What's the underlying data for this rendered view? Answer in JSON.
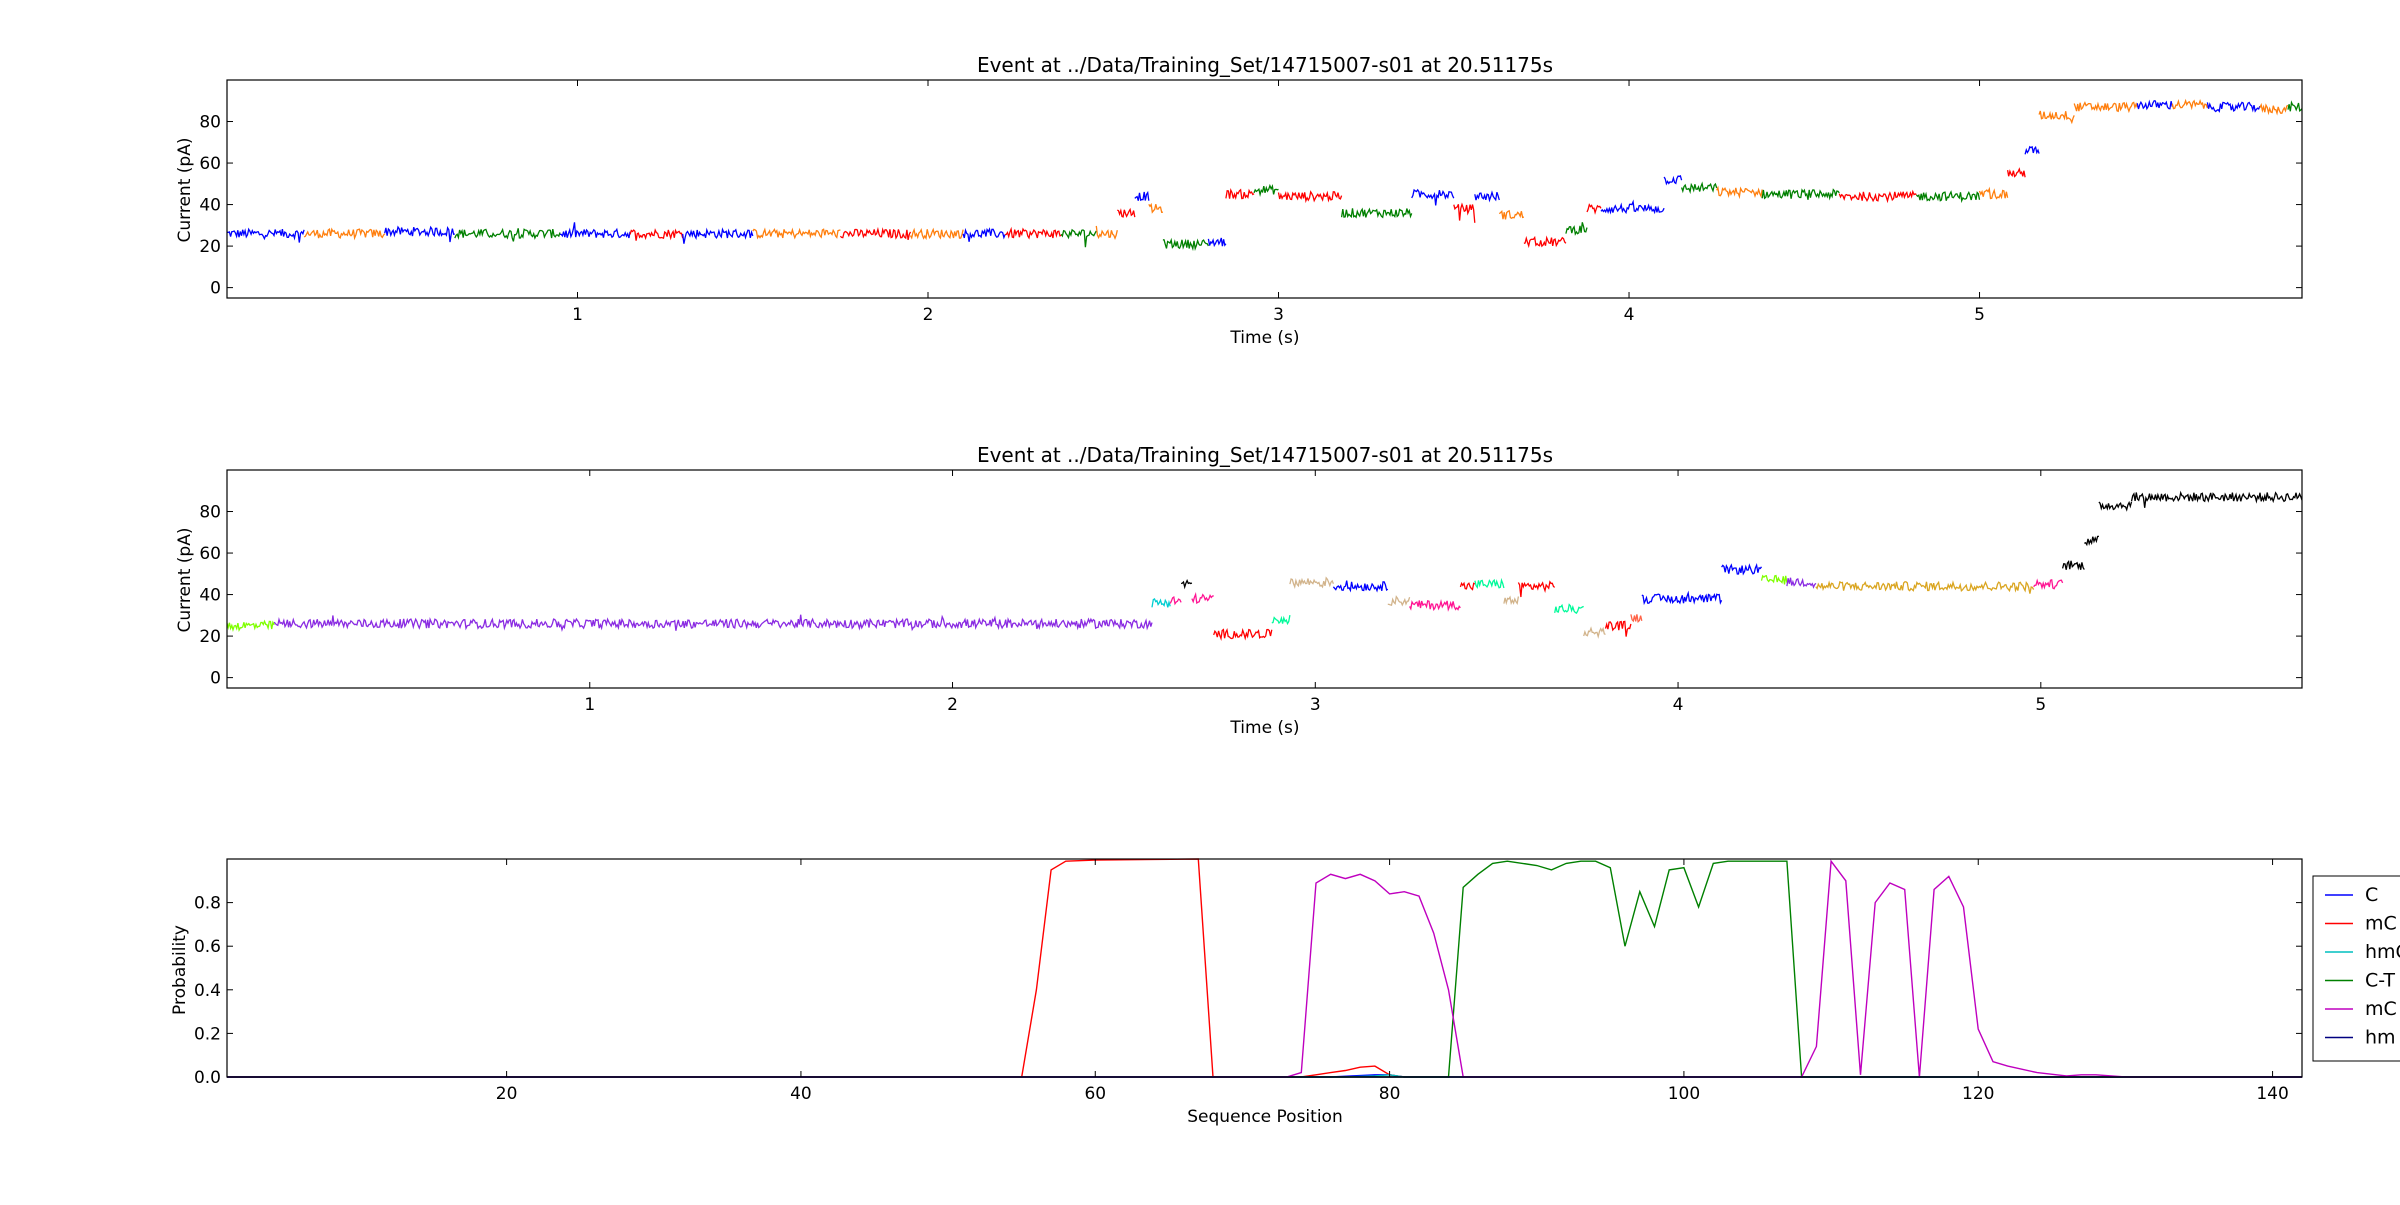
{
  "figure": {
    "background": "#ffffff"
  },
  "chart_data": [
    {
      "type": "line",
      "title": "Event at ../Data/Training_Set/14715007-s01 at 20.51175s",
      "xlabel": "Time (s)",
      "ylabel": "Current (pA)",
      "xlim": [
        0.0,
        5.92
      ],
      "ylim": [
        -5,
        100
      ],
      "xticks": [
        1,
        2,
        3,
        4,
        5
      ],
      "yticks": [
        0,
        20,
        40,
        60,
        80
      ],
      "grid": false,
      "noise_pA": 1.1,
      "segments": [
        {
          "t0": 0.0,
          "t1": 0.22,
          "level": 26,
          "color": "#0000ff"
        },
        {
          "t0": 0.22,
          "t1": 0.45,
          "level": 26,
          "color": "#ff7f0e"
        },
        {
          "t0": 0.45,
          "t1": 0.65,
          "level": 27,
          "color": "#0000ff"
        },
        {
          "t0": 0.65,
          "t1": 0.95,
          "level": 26,
          "color": "#008000"
        },
        {
          "t0": 0.95,
          "t1": 1.15,
          "level": 26,
          "color": "#0000ff"
        },
        {
          "t0": 1.15,
          "t1": 1.3,
          "level": 26,
          "color": "#ff0000"
        },
        {
          "t0": 1.3,
          "t1": 1.5,
          "level": 26,
          "color": "#0000ff"
        },
        {
          "t0": 1.5,
          "t1": 1.75,
          "level": 26,
          "color": "#ff7f0e"
        },
        {
          "t0": 1.75,
          "t1": 1.95,
          "level": 26,
          "color": "#ff0000"
        },
        {
          "t0": 1.95,
          "t1": 2.1,
          "level": 26,
          "color": "#ff7f0e"
        },
        {
          "t0": 2.1,
          "t1": 2.22,
          "level": 26,
          "color": "#0000ff"
        },
        {
          "t0": 2.22,
          "t1": 2.38,
          "level": 26,
          "color": "#ff0000"
        },
        {
          "t0": 2.38,
          "t1": 2.48,
          "level": 26,
          "color": "#008000"
        },
        {
          "t0": 2.48,
          "t1": 2.54,
          "level": 26,
          "color": "#ff7f0e"
        },
        {
          "t0": 2.54,
          "t1": 2.59,
          "level": 36,
          "color": "#ff0000"
        },
        {
          "t0": 2.59,
          "t1": 2.63,
          "level": 44,
          "color": "#0000ff"
        },
        {
          "t0": 2.63,
          "t1": 2.67,
          "level": 38,
          "color": "#ff7f0e"
        },
        {
          "t0": 2.67,
          "t1": 2.8,
          "level": 21,
          "color": "#008000"
        },
        {
          "t0": 2.8,
          "t1": 2.85,
          "level": 22,
          "color": "#0000ff"
        },
        {
          "t0": 2.85,
          "t1": 2.93,
          "level": 45,
          "color": "#ff0000"
        },
        {
          "t0": 2.93,
          "t1": 3.0,
          "level": 47,
          "color": "#008000"
        },
        {
          "t0": 3.0,
          "t1": 3.18,
          "level": 44,
          "color": "#ff0000"
        },
        {
          "t0": 3.18,
          "t1": 3.38,
          "level": 36,
          "color": "#008000"
        },
        {
          "t0": 3.38,
          "t1": 3.5,
          "level": 45,
          "color": "#0000ff"
        },
        {
          "t0": 3.5,
          "t1": 3.56,
          "level": 38,
          "color": "#ff0000"
        },
        {
          "t0": 3.56,
          "t1": 3.63,
          "level": 44,
          "color": "#0000ff"
        },
        {
          "t0": 3.63,
          "t1": 3.7,
          "level": 35,
          "color": "#ff7f0e"
        },
        {
          "t0": 3.7,
          "t1": 3.82,
          "level": 22,
          "color": "#ff0000"
        },
        {
          "t0": 3.82,
          "t1": 3.88,
          "level": 28,
          "color": "#008000"
        },
        {
          "t0": 3.88,
          "t1": 3.92,
          "level": 38,
          "color": "#ff0000"
        },
        {
          "t0": 3.92,
          "t1": 4.1,
          "level": 38,
          "color": "#0000ff"
        },
        {
          "t0": 4.1,
          "t1": 4.15,
          "level": 52,
          "color": "#0000ff"
        },
        {
          "t0": 4.15,
          "t1": 4.25,
          "level": 48,
          "color": "#008000"
        },
        {
          "t0": 4.25,
          "t1": 4.38,
          "level": 46,
          "color": "#ff7f0e"
        },
        {
          "t0": 4.38,
          "t1": 4.6,
          "level": 45,
          "color": "#008000"
        },
        {
          "t0": 4.6,
          "t1": 4.82,
          "level": 44,
          "color": "#ff0000"
        },
        {
          "t0": 4.82,
          "t1": 5.0,
          "level": 44,
          "color": "#008000"
        },
        {
          "t0": 5.0,
          "t1": 5.08,
          "level": 45,
          "color": "#ff7f0e"
        },
        {
          "t0": 5.08,
          "t1": 5.13,
          "level": 55,
          "color": "#ff0000"
        },
        {
          "t0": 5.13,
          "t1": 5.17,
          "level": 66,
          "color": "#0000ff"
        },
        {
          "t0": 5.17,
          "t1": 5.27,
          "level": 83,
          "color": "#ff7f0e"
        },
        {
          "t0": 5.27,
          "t1": 5.45,
          "level": 87,
          "color": "#ff7f0e"
        },
        {
          "t0": 5.45,
          "t1": 5.55,
          "level": 88,
          "color": "#0000ff"
        },
        {
          "t0": 5.55,
          "t1": 5.65,
          "level": 88,
          "color": "#ff7f0e"
        },
        {
          "t0": 5.65,
          "t1": 5.8,
          "level": 87,
          "color": "#0000ff"
        },
        {
          "t0": 5.8,
          "t1": 5.88,
          "level": 86,
          "color": "#ff7f0e"
        },
        {
          "t0": 5.88,
          "t1": 5.92,
          "level": 87,
          "color": "#008000"
        }
      ]
    },
    {
      "type": "line",
      "title": "Event at ../Data/Training_Set/14715007-s01 at 20.51175s",
      "xlabel": "Time (s)",
      "ylabel": "Current (pA)",
      "xlim": [
        0.0,
        5.72
      ],
      "ylim": [
        -5,
        100
      ],
      "xticks": [
        1,
        2,
        3,
        4,
        5
      ],
      "yticks": [
        0,
        20,
        40,
        60,
        80
      ],
      "grid": false,
      "noise_pA": 1.1,
      "segments": [
        {
          "t0": 0.0,
          "t1": 0.13,
          "level": 25,
          "color": "#7fff00"
        },
        {
          "t0": 0.13,
          "t1": 2.55,
          "level": 26,
          "color": "#8a2be2"
        },
        {
          "t0": 2.55,
          "t1": 2.6,
          "level": 36,
          "color": "#00ced1"
        },
        {
          "t0": 2.6,
          "t1": 2.63,
          "level": 37,
          "color": "#ff1493"
        },
        {
          "t0": 2.63,
          "t1": 2.66,
          "level": 45,
          "color": "#000000"
        },
        {
          "t0": 2.66,
          "t1": 2.72,
          "level": 38,
          "color": "#ff1493"
        },
        {
          "t0": 2.72,
          "t1": 2.88,
          "level": 21,
          "color": "#ff0000"
        },
        {
          "t0": 2.88,
          "t1": 2.93,
          "level": 28,
          "color": "#00fa9a"
        },
        {
          "t0": 2.93,
          "t1": 3.05,
          "level": 46,
          "color": "#d2b48c"
        },
        {
          "t0": 3.05,
          "t1": 3.2,
          "level": 44,
          "color": "#0000ff"
        },
        {
          "t0": 3.2,
          "t1": 3.26,
          "level": 37,
          "color": "#d2b48c"
        },
        {
          "t0": 3.26,
          "t1": 3.4,
          "level": 35,
          "color": "#ff1493"
        },
        {
          "t0": 3.4,
          "t1": 3.44,
          "level": 44,
          "color": "#ff0000"
        },
        {
          "t0": 3.44,
          "t1": 3.52,
          "level": 45,
          "color": "#00fa9a"
        },
        {
          "t0": 3.52,
          "t1": 3.56,
          "level": 37,
          "color": "#d2b48c"
        },
        {
          "t0": 3.56,
          "t1": 3.66,
          "level": 44,
          "color": "#ff0000"
        },
        {
          "t0": 3.66,
          "t1": 3.74,
          "level": 33,
          "color": "#00fa9a"
        },
        {
          "t0": 3.74,
          "t1": 3.8,
          "level": 22,
          "color": "#d2b48c"
        },
        {
          "t0": 3.8,
          "t1": 3.87,
          "level": 25,
          "color": "#ff0000"
        },
        {
          "t0": 3.87,
          "t1": 3.9,
          "level": 29,
          "color": "#ff6347"
        },
        {
          "t0": 3.9,
          "t1": 4.12,
          "level": 38,
          "color": "#0000ff"
        },
        {
          "t0": 4.12,
          "t1": 4.23,
          "level": 52,
          "color": "#0000ff"
        },
        {
          "t0": 4.23,
          "t1": 4.3,
          "level": 47,
          "color": "#7fff00"
        },
        {
          "t0": 4.3,
          "t1": 4.38,
          "level": 46,
          "color": "#8a2be2"
        },
        {
          "t0": 4.38,
          "t1": 4.98,
          "level": 44,
          "color": "#daa520"
        },
        {
          "t0": 4.98,
          "t1": 5.06,
          "level": 45,
          "color": "#ff1493"
        },
        {
          "t0": 5.06,
          "t1": 5.12,
          "level": 54,
          "color": "#000000"
        },
        {
          "t0": 5.12,
          "t1": 5.16,
          "level": 66,
          "color": "#000000"
        },
        {
          "t0": 5.16,
          "t1": 5.25,
          "level": 83,
          "color": "#000000"
        },
        {
          "t0": 5.25,
          "t1": 5.72,
          "level": 87,
          "color": "#000000"
        }
      ]
    },
    {
      "type": "line",
      "title": "",
      "xlabel": "Sequence Position",
      "ylabel": "Probability",
      "xlim": [
        1,
        142
      ],
      "ylim": [
        0,
        1.0
      ],
      "xticks": [
        20,
        40,
        60,
        80,
        100,
        120,
        140
      ],
      "yticks": [
        0.0,
        0.2,
        0.4,
        0.6,
        0.8
      ],
      "ytick_labels": [
        "0.0",
        "0.2",
        "0.4",
        "0.6",
        "0.8"
      ],
      "grid": false,
      "legend_position": "right (outside, cropped)",
      "series": [
        {
          "name": "C",
          "color": "#0000ff",
          "points": [
            [
              1,
              0
            ],
            [
              76,
              0
            ],
            [
              79,
              0.01
            ],
            [
              80,
              0.01
            ],
            [
              81,
              0
            ],
            [
              142,
              0
            ]
          ]
        },
        {
          "name": "mC",
          "color": "#ff0000",
          "points": [
            [
              1,
              0
            ],
            [
              55,
              0
            ],
            [
              56,
              0.4
            ],
            [
              57,
              0.95
            ],
            [
              58,
              0.99
            ],
            [
              60,
              0.995
            ],
            [
              67,
              1.0
            ],
            [
              68,
              0.0
            ],
            [
              74,
              0.0
            ],
            [
              75,
              0.01
            ],
            [
              76,
              0.02
            ],
            [
              77,
              0.03
            ],
            [
              78,
              0.045
            ],
            [
              79,
              0.05
            ],
            [
              80,
              0.01
            ],
            [
              81,
              0
            ],
            [
              142,
              0
            ]
          ]
        },
        {
          "name": "hmC",
          "color": "#00bfbf",
          "points": [
            [
              1,
              0
            ],
            [
              77,
              0
            ],
            [
              79,
              0.005
            ],
            [
              80,
              0.01
            ],
            [
              81,
              0
            ],
            [
              142,
              0
            ]
          ]
        },
        {
          "name": "C-T",
          "color": "#008000",
          "points": [
            [
              1,
              0
            ],
            [
              84,
              0
            ],
            [
              85,
              0.87
            ],
            [
              86,
              0.93
            ],
            [
              87,
              0.98
            ],
            [
              88,
              0.99
            ],
            [
              90,
              0.97
            ],
            [
              91,
              0.95
            ],
            [
              92,
              0.98
            ],
            [
              93,
              0.99
            ],
            [
              94,
              0.99
            ],
            [
              95,
              0.96
            ],
            [
              96,
              0.6
            ],
            [
              97,
              0.85
            ],
            [
              98,
              0.69
            ],
            [
              99,
              0.95
            ],
            [
              100,
              0.96
            ],
            [
              101,
              0.78
            ],
            [
              102,
              0.98
            ],
            [
              103,
              0.99
            ],
            [
              107,
              0.99
            ],
            [
              108,
              0.0
            ],
            [
              142,
              0
            ]
          ]
        },
        {
          "name": "mC",
          "color": "#bf00bf",
          "points": [
            [
              1,
              0
            ],
            [
              73,
              0
            ],
            [
              74,
              0.02
            ],
            [
              75,
              0.89
            ],
            [
              76,
              0.93
            ],
            [
              77,
              0.91
            ],
            [
              78,
              0.93
            ],
            [
              79,
              0.9
            ],
            [
              80,
              0.84
            ],
            [
              81,
              0.85
            ],
            [
              82,
              0.83
            ],
            [
              83,
              0.66
            ],
            [
              84,
              0.4
            ],
            [
              85,
              0.0
            ],
            [
              108,
              0.0
            ],
            [
              109,
              0.14
            ],
            [
              110,
              0.99
            ],
            [
              111,
              0.9
            ],
            [
              112,
              0.01
            ],
            [
              113,
              0.8
            ],
            [
              114,
              0.89
            ],
            [
              115,
              0.86
            ],
            [
              116,
              0.0
            ],
            [
              117,
              0.86
            ],
            [
              118,
              0.92
            ],
            [
              119,
              0.78
            ],
            [
              120,
              0.22
            ],
            [
              121,
              0.07
            ],
            [
              122,
              0.05
            ],
            [
              124,
              0.02
            ],
            [
              126,
              0.005
            ],
            [
              127,
              0.01
            ],
            [
              128,
              0.01
            ],
            [
              130,
              0.0
            ],
            [
              142,
              0
            ]
          ]
        },
        {
          "name": "hm",
          "color": "#000080",
          "points": [
            [
              1,
              0
            ],
            [
              142,
              0
            ]
          ]
        }
      ]
    }
  ]
}
